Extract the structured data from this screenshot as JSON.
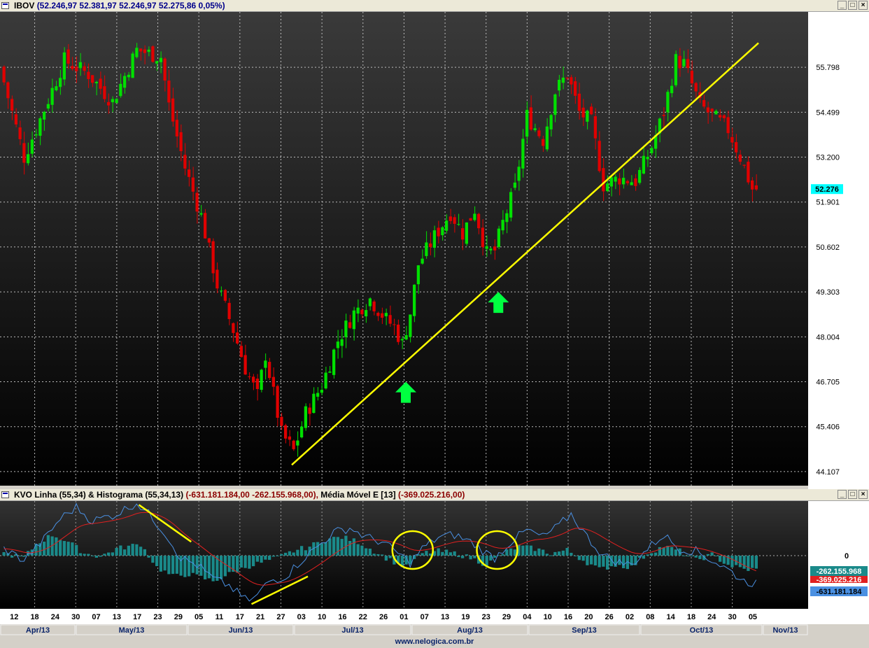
{
  "main_window": {
    "title_symbol": "IBOV",
    "title_values": "(52.246,97   52.381,97   52.246,97   52.275,86   0,05%)",
    "buttons": [
      "_",
      "□",
      "×"
    ]
  },
  "kvo_window": {
    "title_name": "KVO Linha (55,34) & Histograma (55,34,13)",
    "title_values": "(-631.181.184,00   -262.155.968,00),",
    "title_ma_name": "Média Móvel E [13]",
    "title_ma_value": "(-369.025.216,00)",
    "buttons": [
      "_",
      "□",
      "×"
    ]
  },
  "footer": {
    "url": "www.nelogica.com.br"
  },
  "colors": {
    "up": "#00e000",
    "down": "#e00000",
    "kvo_line": "#4a90e2",
    "ma_line": "#e02020",
    "histogram": "#1a8a8a",
    "trendline": "#ffff00",
    "arrow": "#00ff40"
  },
  "chart_data": [
    {
      "type": "candlestick",
      "title": "IBOV",
      "y_ticks": [
        "55.798",
        "54.499",
        "53.200",
        "51.901",
        "50.602",
        "49.303",
        "48.004",
        "46.705",
        "45.406",
        "44.107"
      ],
      "y_tick_values": [
        55798,
        54499,
        53200,
        51901,
        50602,
        49303,
        48004,
        46705,
        45406,
        44107
      ],
      "ylim": [
        43700,
        57400
      ],
      "last_price_label": "52.276",
      "last_price": 52276,
      "grid": true,
      "x_tick_labels": [
        "12",
        "18",
        "24",
        "30",
        "07",
        "13",
        "17",
        "23",
        "29",
        "05",
        "11",
        "17",
        "21",
        "27",
        "03",
        "10",
        "16",
        "22",
        "26",
        "01",
        "07",
        "13",
        "19",
        "23",
        "29",
        "04",
        "10",
        "16",
        "20",
        "26",
        "02",
        "08",
        "14",
        "18",
        "24",
        "30",
        "05"
      ],
      "month_labels": [
        "Apr/13",
        "May/13",
        "Jun/13",
        "Jul/13",
        "Aug/13",
        "Sep/13",
        "Oct/13",
        "Nov/13"
      ],
      "trendlines": [
        {
          "from_bar": 72,
          "from_price": 44300,
          "to_bar": 188,
          "to_price": 56500
        }
      ],
      "arrows_up_at_bars": [
        100,
        123
      ],
      "anchors": [
        [
          0,
          55800
        ],
        [
          6,
          53200
        ],
        [
          10,
          54300
        ],
        [
          16,
          56000
        ],
        [
          22,
          55600
        ],
        [
          28,
          54800
        ],
        [
          34,
          56300
        ],
        [
          40,
          56100
        ],
        [
          42,
          54700
        ],
        [
          46,
          52900
        ],
        [
          50,
          51500
        ],
        [
          54,
          49500
        ],
        [
          58,
          48200
        ],
        [
          61,
          47100
        ],
        [
          64,
          46300
        ],
        [
          66,
          47500
        ],
        [
          70,
          45200
        ],
        [
          73,
          44700
        ],
        [
          76,
          45800
        ],
        [
          80,
          46600
        ],
        [
          84,
          47900
        ],
        [
          88,
          48700
        ],
        [
          92,
          49100
        ],
        [
          96,
          48500
        ],
        [
          98,
          48300
        ],
        [
          100,
          47800
        ],
        [
          102,
          48700
        ],
        [
          104,
          50100
        ],
        [
          108,
          50900
        ],
        [
          112,
          51600
        ],
        [
          115,
          51000
        ],
        [
          118,
          51700
        ],
        [
          121,
          50400
        ],
        [
          123,
          50500
        ],
        [
          125,
          51300
        ],
        [
          128,
          52300
        ],
        [
          131,
          54400
        ],
        [
          135,
          53700
        ],
        [
          138,
          55100
        ],
        [
          141,
          55600
        ],
        [
          144,
          54500
        ],
        [
          147,
          54200
        ],
        [
          150,
          52400
        ],
        [
          154,
          52600
        ],
        [
          158,
          52500
        ],
        [
          162,
          53500
        ],
        [
          165,
          54500
        ],
        [
          168,
          56000
        ],
        [
          170,
          55900
        ],
        [
          174,
          54700
        ],
        [
          178,
          54300
        ],
        [
          181,
          54000
        ],
        [
          184,
          53200
        ],
        [
          187,
          52276
        ]
      ]
    },
    {
      "type": "indicator",
      "title": "KVO Linha (55,34) & Histograma (55,34,13)",
      "right_labels": [
        "0",
        "-262.155.968",
        "-369.025.216",
        "-631.181.184"
      ],
      "kvo_line_last": -631181184,
      "histogram_last": -262155968,
      "ema_last": -369025216,
      "circles_at_bars": [
        101,
        122
      ],
      "annotation_lines": [
        {
          "from_bar": 34,
          "from_value": 1.1,
          "to_bar": 47,
          "to_value": 0.3
        },
        {
          "from_bar": 62,
          "from_value": -1.05,
          "to_bar": 76,
          "to_value": -0.45
        }
      ],
      "histogram_anchors": [
        [
          0,
          0.05
        ],
        [
          5,
          -0.05
        ],
        [
          8,
          0.25
        ],
        [
          12,
          0.45
        ],
        [
          16,
          0.3
        ],
        [
          20,
          0.05
        ],
        [
          24,
          -0.02
        ],
        [
          28,
          0.15
        ],
        [
          34,
          0.25
        ],
        [
          38,
          -0.25
        ],
        [
          42,
          -0.45
        ],
        [
          46,
          -0.4
        ],
        [
          52,
          -0.55
        ],
        [
          56,
          -0.4
        ],
        [
          60,
          -0.25
        ],
        [
          64,
          -0.15
        ],
        [
          68,
          -0.05
        ],
        [
          72,
          0.1
        ],
        [
          76,
          0.2
        ],
        [
          80,
          0.35
        ],
        [
          84,
          0.4
        ],
        [
          88,
          0.3
        ],
        [
          92,
          0.1
        ],
        [
          96,
          -0.1
        ],
        [
          100,
          -0.25
        ],
        [
          104,
          0.05
        ],
        [
          108,
          0.1
        ],
        [
          112,
          0.05
        ],
        [
          116,
          -0.05
        ],
        [
          120,
          -0.2
        ],
        [
          124,
          0.05
        ],
        [
          128,
          0.2
        ],
        [
          132,
          0.15
        ],
        [
          136,
          0.05
        ],
        [
          140,
          0.12
        ],
        [
          144,
          -0.1
        ],
        [
          148,
          -0.3
        ],
        [
          152,
          -0.2
        ],
        [
          156,
          -0.25
        ],
        [
          160,
          0.05
        ],
        [
          164,
          0.2
        ],
        [
          168,
          0.1
        ],
        [
          172,
          -0.1
        ],
        [
          176,
          0.02
        ],
        [
          180,
          -0.2
        ],
        [
          184,
          -0.3
        ],
        [
          187,
          -0.3
        ]
      ],
      "kvo_anchors": [
        [
          0,
          0.15
        ],
        [
          5,
          -0.1
        ],
        [
          10,
          0.35
        ],
        [
          14,
          0.8
        ],
        [
          18,
          1.05
        ],
        [
          22,
          0.75
        ],
        [
          28,
          0.9
        ],
        [
          33,
          1.15
        ],
        [
          36,
          0.9
        ],
        [
          40,
          0.5
        ],
        [
          44,
          -0.05
        ],
        [
          48,
          -0.2
        ],
        [
          52,
          -0.5
        ],
        [
          56,
          -0.65
        ],
        [
          60,
          -0.95
        ],
        [
          62,
          -0.95
        ],
        [
          66,
          -0.55
        ],
        [
          70,
          -0.45
        ],
        [
          74,
          -0.1
        ],
        [
          78,
          0.2
        ],
        [
          82,
          0.5
        ],
        [
          86,
          0.6
        ],
        [
          90,
          0.4
        ],
        [
          94,
          0.3
        ],
        [
          98,
          0.05
        ],
        [
          101,
          -0.15
        ],
        [
          104,
          0.15
        ],
        [
          108,
          0.4
        ],
        [
          112,
          0.45
        ],
        [
          116,
          0.3
        ],
        [
          120,
          0.05
        ],
        [
          122,
          -0.05
        ],
        [
          126,
          0.3
        ],
        [
          130,
          0.55
        ],
        [
          134,
          0.4
        ],
        [
          138,
          0.65
        ],
        [
          141,
          0.9
        ],
        [
          145,
          0.4
        ],
        [
          149,
          0.0
        ],
        [
          153,
          -0.15
        ],
        [
          156,
          -0.2
        ],
        [
          160,
          0.15
        ],
        [
          164,
          0.45
        ],
        [
          168,
          0.15
        ],
        [
          172,
          0.1
        ],
        [
          176,
          -0.1
        ],
        [
          180,
          -0.3
        ],
        [
          184,
          -0.55
        ],
        [
          187,
          -0.6
        ]
      ]
    }
  ]
}
